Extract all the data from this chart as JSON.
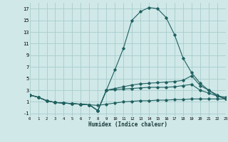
{
  "xlabel": "Humidex (Indice chaleur)",
  "bg_color": "#d0e8e8",
  "grid_color": "#a8cccc",
  "line_color": "#206060",
  "xlim": [
    0,
    23
  ],
  "ylim": [
    -1.5,
    18
  ],
  "yticks": [
    -1,
    1,
    3,
    5,
    7,
    9,
    11,
    13,
    15,
    17
  ],
  "xticks": [
    0,
    1,
    2,
    3,
    4,
    5,
    6,
    7,
    8,
    9,
    10,
    11,
    12,
    13,
    14,
    15,
    16,
    17,
    18,
    19,
    20,
    21,
    22,
    23
  ],
  "lines": [
    {
      "x": [
        0,
        1,
        2,
        3,
        4,
        5,
        6,
        7,
        8,
        9,
        10,
        11,
        12,
        13,
        14,
        15,
        16,
        17,
        18,
        19,
        20,
        21,
        22,
        23
      ],
      "y": [
        2.2,
        1.8,
        1.2,
        0.9,
        0.8,
        0.7,
        0.6,
        0.5,
        -0.5,
        3.0,
        6.5,
        10.2,
        15.0,
        16.5,
        17.2,
        17.0,
        15.5,
        12.5,
        8.5,
        6.0,
        4.2,
        3.0,
        2.0,
        1.5
      ]
    },
    {
      "x": [
        0,
        1,
        2,
        3,
        4,
        5,
        6,
        7,
        8,
        9,
        10,
        11,
        12,
        13,
        14,
        15,
        16,
        17,
        18,
        19,
        20,
        21,
        22,
        23
      ],
      "y": [
        2.2,
        1.8,
        1.2,
        0.9,
        0.8,
        0.7,
        0.6,
        0.5,
        -0.5,
        3.0,
        3.3,
        3.6,
        3.9,
        4.1,
        4.2,
        4.3,
        4.4,
        4.5,
        4.7,
        5.5,
        3.8,
        3.0,
        2.2,
        1.5
      ]
    },
    {
      "x": [
        0,
        1,
        2,
        3,
        4,
        5,
        6,
        7,
        8,
        9,
        10,
        11,
        12,
        13,
        14,
        15,
        16,
        17,
        18,
        19,
        20,
        21,
        22,
        23
      ],
      "y": [
        2.2,
        1.8,
        1.2,
        0.9,
        0.8,
        0.7,
        0.6,
        0.5,
        -0.5,
        3.0,
        3.1,
        3.2,
        3.3,
        3.4,
        3.5,
        3.5,
        3.5,
        3.6,
        3.8,
        4.0,
        3.0,
        2.5,
        2.0,
        1.8
      ]
    },
    {
      "x": [
        0,
        1,
        2,
        3,
        4,
        5,
        6,
        7,
        8,
        9,
        10,
        11,
        12,
        13,
        14,
        15,
        16,
        17,
        18,
        19,
        20,
        21,
        22,
        23
      ],
      "y": [
        2.2,
        1.8,
        1.2,
        0.9,
        0.8,
        0.7,
        0.6,
        0.5,
        0.4,
        0.6,
        0.8,
        1.0,
        1.1,
        1.2,
        1.2,
        1.3,
        1.3,
        1.4,
        1.4,
        1.5,
        1.5,
        1.5,
        1.5,
        1.5
      ]
    }
  ]
}
